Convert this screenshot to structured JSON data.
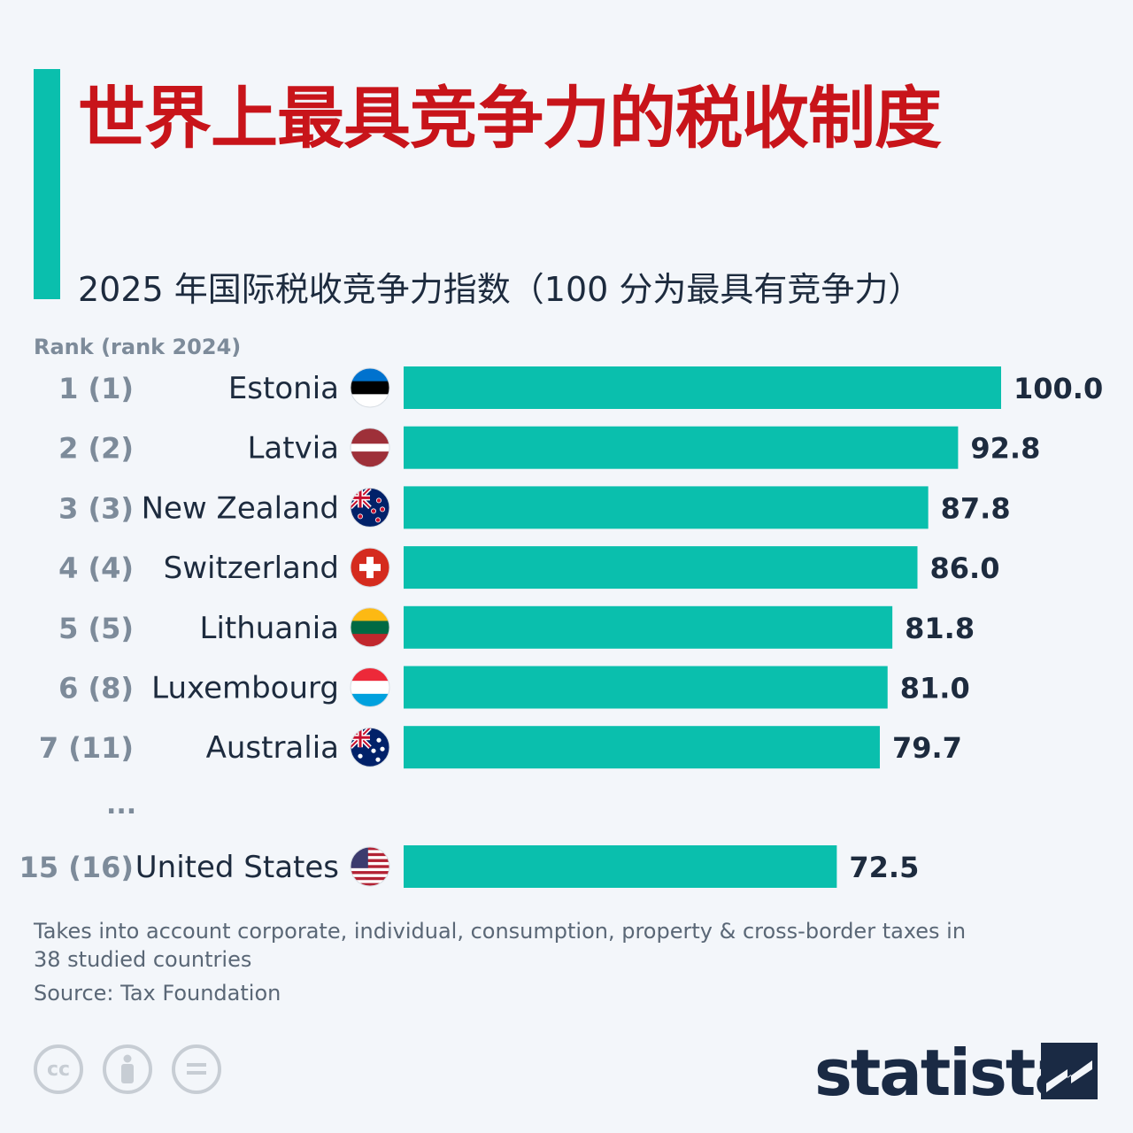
{
  "title": "世界上最具竞争力的税收制度",
  "subtitle": "2025 年国际税收竞争力指数（100 分为最具有竞争力）",
  "rank_header": "Rank (rank 2024)",
  "ellipsis": "...",
  "note": "Takes into account corporate, individual, consumption, property & cross-border taxes in 38 studied countries",
  "source": "Source: Tax Foundation",
  "brand": "statista",
  "license_icons": [
    "cc-icon",
    "attribution-icon",
    "no-derivatives-icon"
  ],
  "colors": {
    "bar": "#0abfad",
    "title": "#c8141a",
    "text": "#1d2b3e",
    "muted": "#7d8b9a"
  },
  "chart_data": {
    "type": "bar",
    "orientation": "horizontal",
    "title": "世界上最具竞争力的税收制度",
    "categories": [
      "Estonia",
      "Latvia",
      "New Zealand",
      "Switzerland",
      "Lithuania",
      "Luxembourg",
      "Australia",
      "United States"
    ],
    "ranks": [
      "1 (1)",
      "2 (2)",
      "3 (3)",
      "4 (4)",
      "5 (5)",
      "6 (8)",
      "7 (11)",
      "15 (16)"
    ],
    "values": [
      100.0,
      92.8,
      87.8,
      86.0,
      81.8,
      81.0,
      79.7,
      72.5
    ],
    "value_labels": [
      "100.0",
      "92.8",
      "87.8",
      "86.0",
      "81.8",
      "81.0",
      "79.7",
      "72.5"
    ],
    "flags": [
      "estonia-flag-icon",
      "latvia-flag-icon",
      "new-zealand-flag-icon",
      "switzerland-flag-icon",
      "lithuania-flag-icon",
      "luxembourg-flag-icon",
      "australia-flag-icon",
      "united-states-flag-icon"
    ],
    "xlim": [
      0,
      100
    ],
    "gap_before_last": true
  }
}
